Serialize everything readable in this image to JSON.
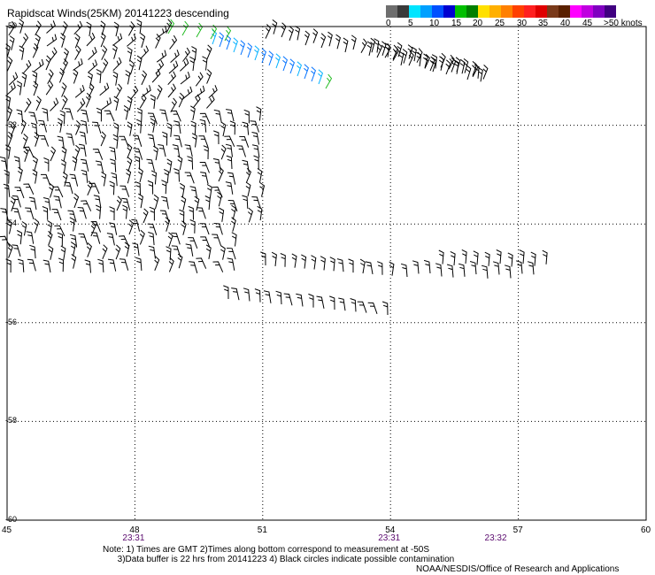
{
  "title": "Rapidscat Winds(25KM) 20141223 descending",
  "scale": {
    "colors": [
      "#6e6e6e",
      "#3a3a3a",
      "#00e5ff",
      "#00a0ff",
      "#0050ff",
      "#0000d0",
      "#00c000",
      "#008000",
      "#ffe000",
      "#ffb000",
      "#ff8000",
      "#ff4000",
      "#ff2020",
      "#e00000",
      "#7a3a1a",
      "#5a2000",
      "#ff00ff",
      "#c000e0",
      "#8000c0",
      "#400080"
    ],
    "labels": [
      "0",
      "5",
      "10",
      "15",
      "20",
      "25",
      "30",
      "35",
      "40",
      "45",
      ">50 knots"
    ]
  },
  "axes": {
    "lat_labels": [
      "-50",
      "-52",
      "-54",
      "-56",
      "-58",
      "-60"
    ],
    "lon_labels": [
      "45",
      "48",
      "51",
      "54",
      "57",
      "60"
    ],
    "lon_range": [
      45,
      60
    ],
    "lat_range": [
      -60,
      -50
    ]
  },
  "times": [
    {
      "label": "23:31",
      "lon": 48.0
    },
    {
      "label": "23:31",
      "lon": 54.0
    },
    {
      "label": "23:32",
      "lon": 56.5
    }
  ],
  "notes": "Note: 1) Times are GMT 2)Times along bottom correspond to measurement at -50S\n      3)Data buffer is 22 hrs from 20141223 4) Black circles indicate possible contamination",
  "credit": "NOAA/NESDIS/Office of Research and Applications"
}
